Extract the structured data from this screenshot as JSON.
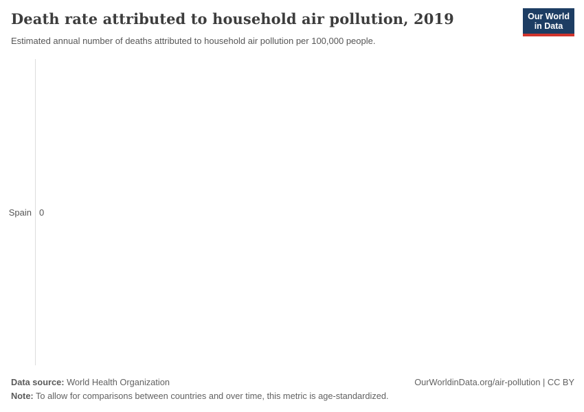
{
  "header": {
    "title": "Death rate attributed to household air pollution, 2019",
    "subtitle": "Estimated annual number of deaths attributed to household air pollution per 100,000 people.",
    "logo": {
      "line1": "Our World",
      "line2": "in Data"
    }
  },
  "chart_data": {
    "type": "bar",
    "orientation": "horizontal",
    "categories": [
      "Spain"
    ],
    "values": [
      0
    ],
    "value_labels": [
      "0"
    ],
    "title": "Death rate attributed to household air pollution, 2019",
    "subtitle": "Estimated annual number of deaths attributed to household air pollution per 100,000 people.",
    "xlabel": "",
    "ylabel": "",
    "xlim": [
      0,
      1
    ],
    "grid": false,
    "legend": false,
    "notes": "Single entity shown with value 0; no bar rendered, only a light-gray vertical baseline axis."
  },
  "footer": {
    "data_source_label": "Data source:",
    "data_source_value": " World Health Organization",
    "link": "OurWorldinData.org/air-pollution | CC BY",
    "note_label": "Note:",
    "note_value": " To allow for comparisons between countries and over time, this metric is age-standardized."
  },
  "colors": {
    "title": "#3d3d3d",
    "subtitle": "#565656",
    "axis_line": "#dddddd",
    "labels": "#555555",
    "footer_text": "#616161",
    "logo_background": "#1d3d63",
    "logo_accent": "#d0342c"
  }
}
